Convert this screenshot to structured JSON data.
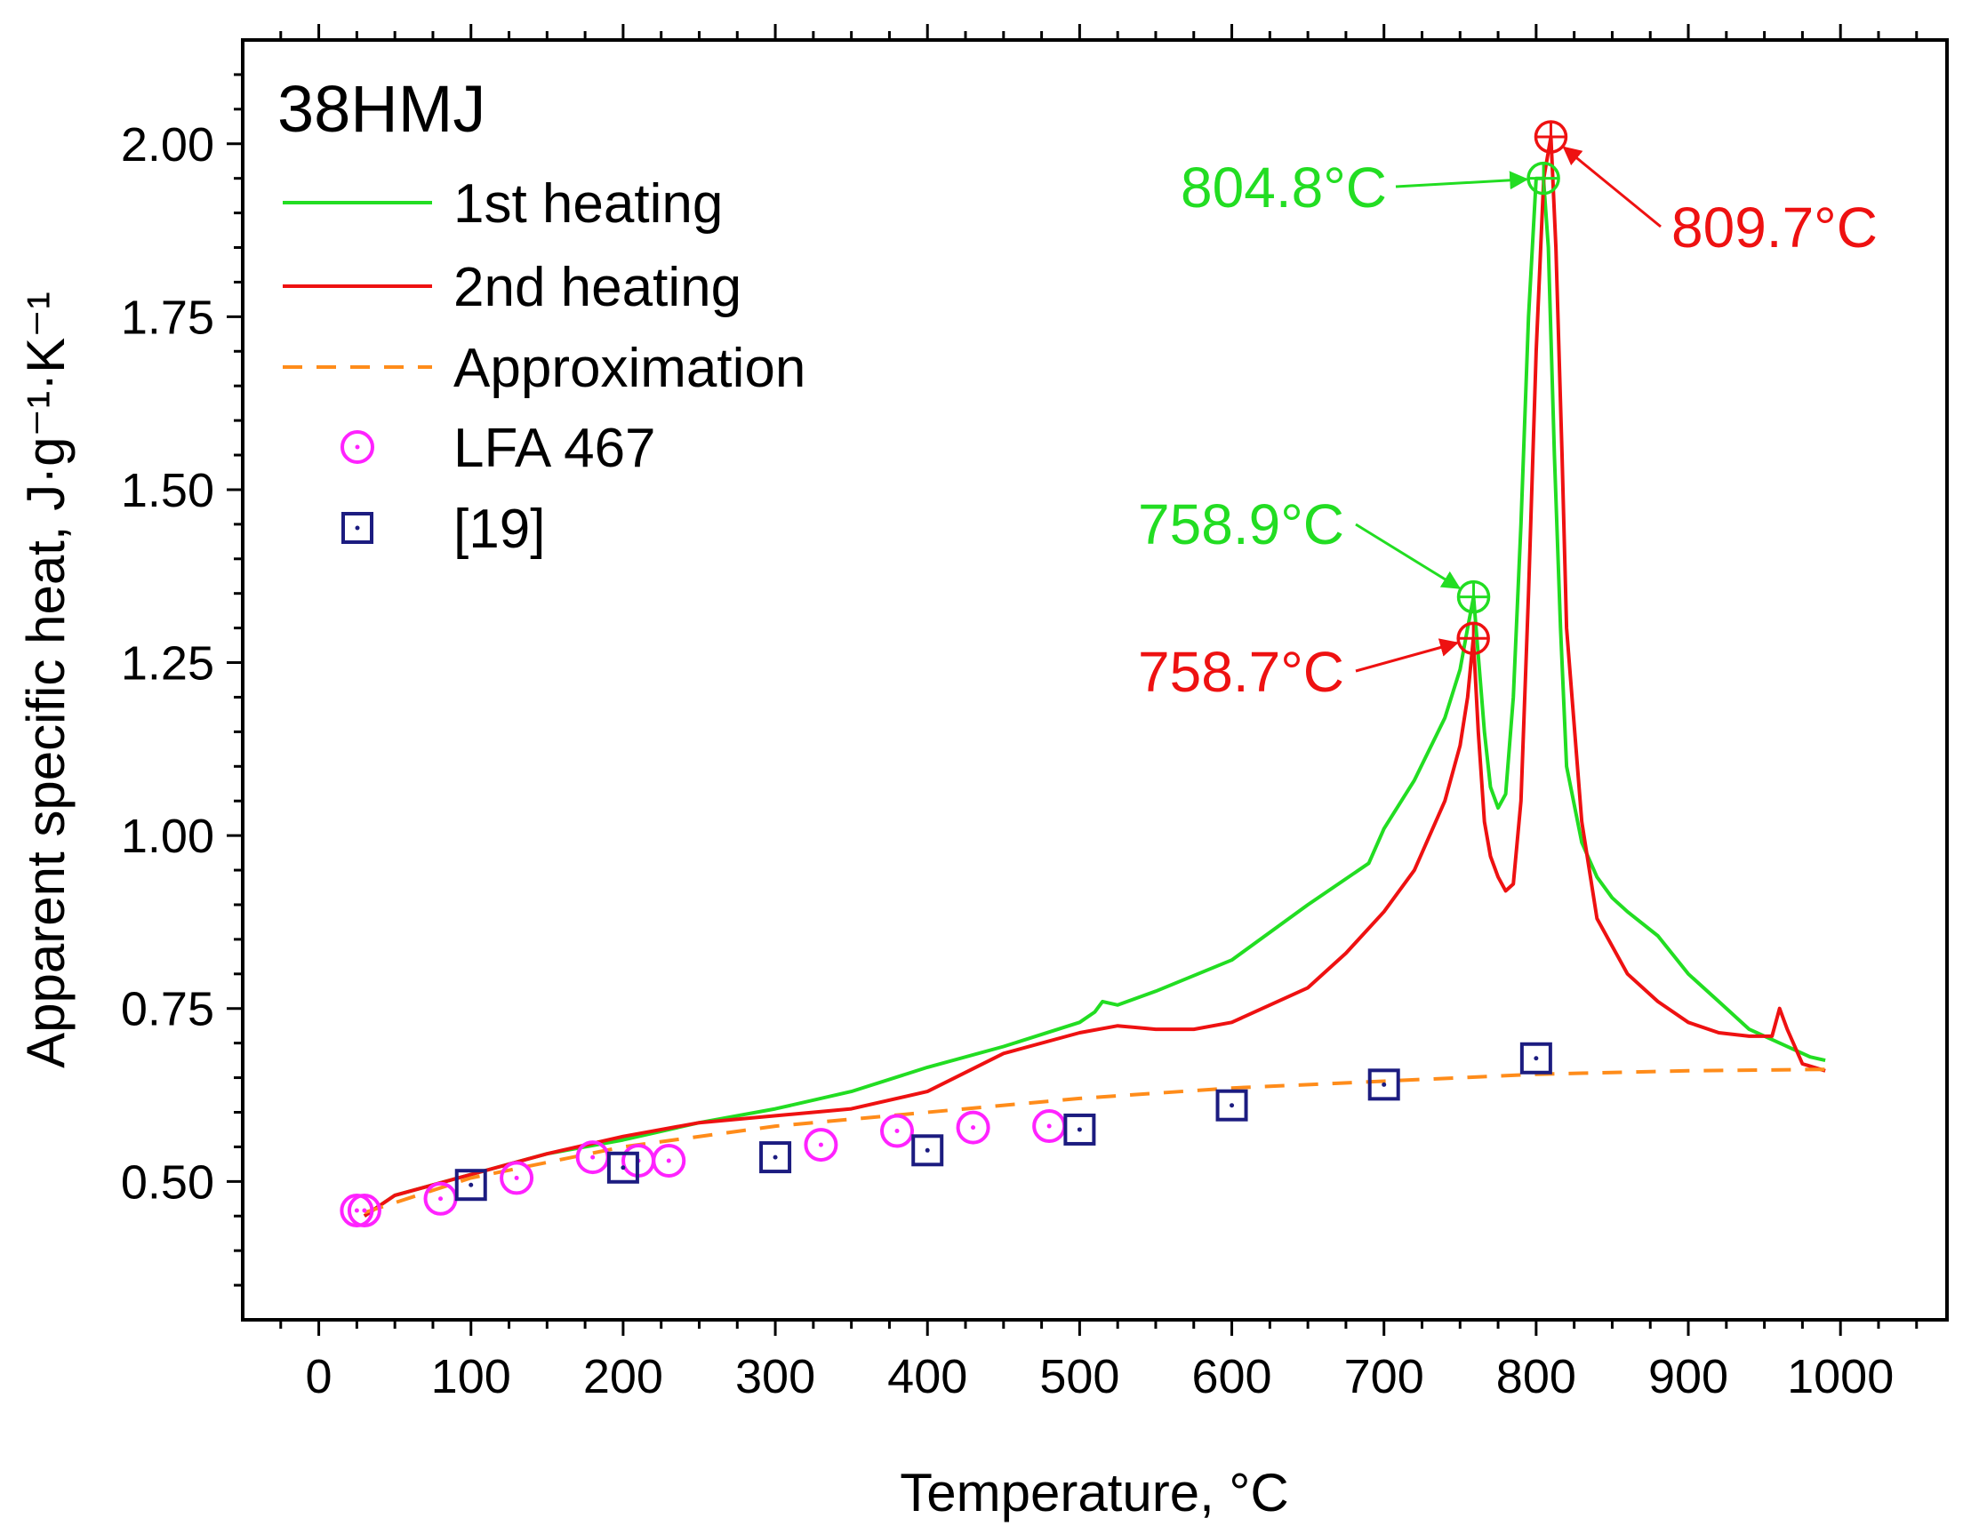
{
  "chart_data": {
    "type": "line",
    "title": "38HMJ",
    "xlabel": "Temperature, °C",
    "ylabel": "Apparent specific heat, J·g⁻¹·K⁻¹",
    "xlim": [
      -50,
      1070
    ],
    "ylim": [
      0.3,
      2.15
    ],
    "x_ticks": [
      0,
      100,
      200,
      300,
      400,
      500,
      600,
      700,
      800,
      900,
      1000
    ],
    "y_ticks": [
      0.5,
      0.75,
      1.0,
      1.25,
      1.5,
      1.75,
      2.0
    ],
    "x_tick_labels": [
      "0",
      "100",
      "200",
      "300",
      "400",
      "500",
      "600",
      "700",
      "800",
      "900",
      "1000"
    ],
    "y_tick_labels": [
      "0.50",
      "0.75",
      "1.00",
      "1.25",
      "1.50",
      "1.75",
      "2.00"
    ],
    "grid": false,
    "legend_position": "top-left",
    "colors": {
      "first_heating": "#22dd22",
      "second_heating": "#ee1111",
      "approximation": "#ff8c1a",
      "lfa": "#ff22ff",
      "ref19": "#1c1c80"
    },
    "series": [
      {
        "name": "1st heating",
        "style": "line",
        "x": [
          30,
          50,
          100,
          150,
          200,
          250,
          300,
          350,
          400,
          450,
          500,
          510,
          515,
          525,
          550,
          600,
          650,
          670,
          690,
          700,
          720,
          740,
          750,
          755,
          758.9,
          762,
          766,
          770,
          775,
          780,
          785,
          790,
          795,
          800,
          804.8,
          808,
          812,
          816,
          820,
          830,
          840,
          850,
          860,
          880,
          900,
          920,
          940,
          960,
          980,
          990
        ],
        "y": [
          0.45,
          0.48,
          0.51,
          0.54,
          0.56,
          0.585,
          0.605,
          0.63,
          0.665,
          0.695,
          0.73,
          0.745,
          0.76,
          0.755,
          0.775,
          0.82,
          0.9,
          0.93,
          0.96,
          1.01,
          1.08,
          1.17,
          1.24,
          1.3,
          1.345,
          1.26,
          1.15,
          1.07,
          1.04,
          1.06,
          1.2,
          1.45,
          1.75,
          1.95,
          1.95,
          1.85,
          1.55,
          1.3,
          1.1,
          0.99,
          0.94,
          0.91,
          0.89,
          0.855,
          0.8,
          0.76,
          0.72,
          0.7,
          0.68,
          0.675
        ]
      },
      {
        "name": "2nd heating",
        "style": "line",
        "x": [
          30,
          50,
          100,
          150,
          200,
          250,
          300,
          350,
          400,
          450,
          500,
          525,
          550,
          575,
          600,
          650,
          675,
          700,
          720,
          740,
          750,
          755,
          758.7,
          762,
          766,
          770,
          775,
          780,
          785,
          790,
          795,
          800,
          805,
          809.7,
          813,
          817,
          820,
          830,
          840,
          860,
          880,
          900,
          920,
          940,
          955,
          960,
          965,
          975,
          990
        ],
        "y": [
          0.45,
          0.48,
          0.51,
          0.54,
          0.565,
          0.585,
          0.595,
          0.605,
          0.63,
          0.685,
          0.715,
          0.725,
          0.72,
          0.72,
          0.73,
          0.78,
          0.83,
          0.89,
          0.95,
          1.05,
          1.13,
          1.2,
          1.285,
          1.15,
          1.02,
          0.97,
          0.94,
          0.92,
          0.93,
          1.05,
          1.35,
          1.7,
          1.95,
          2.01,
          1.85,
          1.55,
          1.3,
          1.02,
          0.88,
          0.8,
          0.76,
          0.73,
          0.715,
          0.71,
          0.71,
          0.75,
          0.72,
          0.67,
          0.66
        ]
      },
      {
        "name": "Approximation",
        "style": "dashed",
        "x": [
          30,
          100,
          200,
          300,
          400,
          500,
          600,
          700,
          800,
          900,
          990
        ],
        "y": [
          0.455,
          0.505,
          0.55,
          0.58,
          0.6,
          0.62,
          0.635,
          0.645,
          0.655,
          0.66,
          0.662
        ]
      },
      {
        "name": "LFA 467",
        "style": "circle-markers",
        "x": [
          25,
          30,
          80,
          130,
          180,
          210,
          230,
          330,
          380,
          430,
          480
        ],
        "y": [
          0.458,
          0.458,
          0.475,
          0.505,
          0.535,
          0.53,
          0.53,
          0.553,
          0.573,
          0.578,
          0.58
        ]
      },
      {
        "name": "[19]",
        "style": "square-markers",
        "x": [
          100,
          200,
          300,
          400,
          500,
          600,
          700,
          800
        ],
        "y": [
          0.495,
          0.52,
          0.535,
          0.545,
          0.575,
          0.61,
          0.64,
          0.678
        ]
      }
    ],
    "annotations": [
      {
        "text": "804.8°C",
        "color": "#22dd22",
        "x": 804.8,
        "y": 1.95
      },
      {
        "text": "809.7°C",
        "color": "#ee1111",
        "x": 809.7,
        "y": 2.01
      },
      {
        "text": "758.9°C",
        "color": "#22dd22",
        "x": 758.9,
        "y": 1.345
      },
      {
        "text": "758.7°C",
        "color": "#ee1111",
        "x": 758.7,
        "y": 1.285
      }
    ]
  }
}
